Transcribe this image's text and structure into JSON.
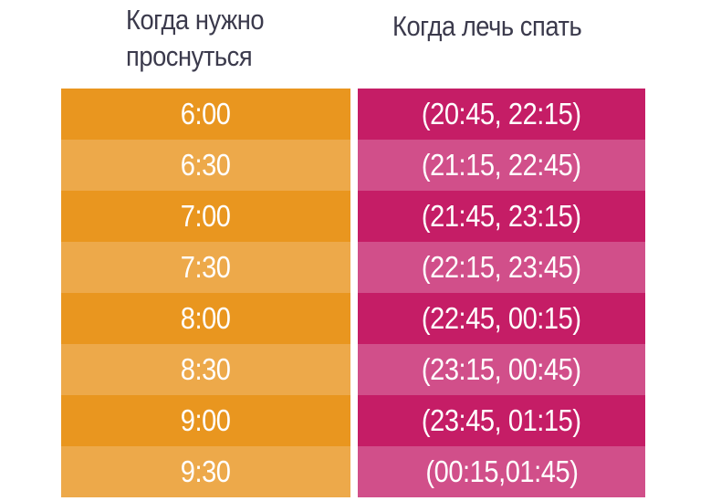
{
  "headers": {
    "wake_line1": "Когда нужно",
    "wake_line2": "проснуться",
    "sleep": "Когда лечь спать"
  },
  "colors": {
    "header_text": "#3b3a4c",
    "wake_dark": "#e9961f",
    "wake_light": "#eda94a",
    "sleep_dark": "#c51d66",
    "sleep_light": "#d14f8a"
  },
  "rows": [
    {
      "wake": "6:00",
      "sleep": "(20:45, 22:15)"
    },
    {
      "wake": "6:30",
      "sleep": "(21:15, 22:45)"
    },
    {
      "wake": "7:00",
      "sleep": "(21:45, 23:15)"
    },
    {
      "wake": "7:30",
      "sleep": "(22:15, 23:45)"
    },
    {
      "wake": "8:00",
      "sleep": "(22:45, 00:15)"
    },
    {
      "wake": "8:30",
      "sleep": "(23:15, 00:45)"
    },
    {
      "wake": "9:00",
      "sleep": "(23:45, 01:15)"
    },
    {
      "wake": "9:30",
      "sleep": "(00:15,01:45)"
    }
  ]
}
